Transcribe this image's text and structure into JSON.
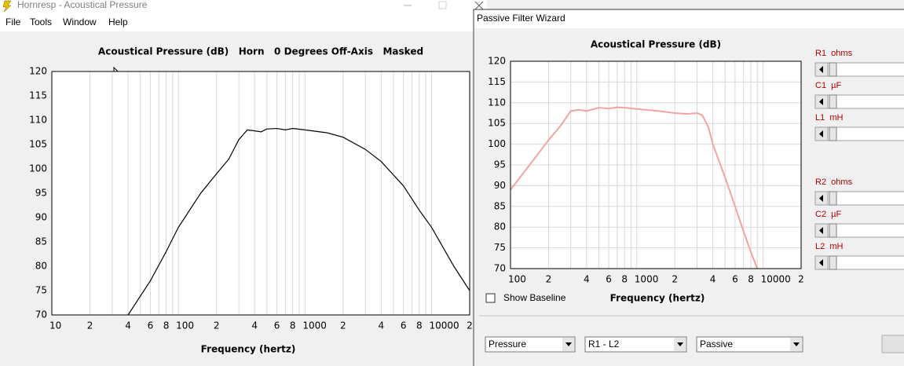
{
  "left_window": {
    "title": "Hornresp - Acoustical Pressure",
    "menu": [
      "File",
      "Tools",
      "Window",
      "Help"
    ]
  },
  "right_window": {
    "title": "Passive Filter Wizard",
    "controls": [
      "R1  ohms",
      "C1  µF",
      "L1  mH",
      "R2  ohms",
      "C2  µF",
      "L2  mH"
    ],
    "show_baseline": "Show Baseline",
    "dropdowns": [
      "Pressure",
      "R1 - L2",
      "Passive"
    ]
  },
  "chart_data": [
    {
      "type": "line",
      "title": "Acoustical Pressure (dB)   Horn   0 Degrees Off-Axis   Masked",
      "x_label": "Frequency (hertz)",
      "log_x": true,
      "grid": "x",
      "color": "#000000",
      "x": [
        40,
        60,
        80,
        100,
        150,
        200,
        250,
        300,
        350,
        400,
        450,
        500,
        600,
        700,
        800,
        1000,
        1500,
        2000,
        3000,
        4000,
        6000,
        8000,
        10000,
        15000,
        20000
      ],
      "values": [
        70,
        77,
        83,
        88,
        95,
        99,
        102,
        106,
        108,
        107.8,
        107.6,
        108.2,
        108.3,
        108,
        108.3,
        108,
        107.4,
        106.5,
        104,
        101.5,
        96.5,
        91.5,
        88,
        80,
        75
      ],
      "xlim": [
        10,
        20000
      ],
      "ylim": [
        70,
        120
      ],
      "xticks": [
        10,
        {
          "value": 20,
          "label": "2"
        },
        {
          "value": 40,
          "label": "4"
        },
        {
          "value": 60,
          "label": "6"
        },
        {
          "value": 80,
          "label": "8"
        },
        100,
        {
          "value": 200,
          "label": "2"
        },
        {
          "value": 400,
          "label": "4"
        },
        {
          "value": 600,
          "label": "6"
        },
        {
          "value": 800,
          "label": "8"
        },
        1000,
        {
          "value": 2000,
          "label": "2"
        },
        {
          "value": 4000,
          "label": "4"
        },
        {
          "value": 6000,
          "label": "6"
        },
        {
          "value": 8000,
          "label": "8"
        },
        10000,
        {
          "value": 20000,
          "label": "2"
        }
      ],
      "x_minor_grid": [
        30,
        50,
        70,
        90,
        300,
        500,
        700,
        900,
        3000,
        5000,
        7000,
        9000
      ],
      "yticks": [
        70,
        75,
        80,
        85,
        90,
        95,
        100,
        105,
        110,
        115,
        120
      ]
    },
    {
      "type": "line",
      "title": "Acoustical Pressure (dB)",
      "x_label": "Frequency (hertz)",
      "log_x": true,
      "grid": "both",
      "color": "#f2a3a3",
      "x": [
        100,
        150,
        200,
        250,
        300,
        350,
        400,
        500,
        600,
        700,
        800,
        1000,
        1500,
        2000,
        2500,
        3000,
        3300,
        3700,
        4000,
        5000,
        6000,
        7000,
        8000,
        9000
      ],
      "values": [
        89,
        96,
        101,
        104.5,
        108,
        108.3,
        108,
        108.8,
        108.6,
        108.9,
        108.8,
        108.5,
        108,
        107.5,
        107.3,
        107.5,
        107,
        104,
        100,
        92,
        85,
        79,
        74,
        70
      ],
      "xlim": [
        100,
        20000
      ],
      "ylim": [
        70,
        120
      ],
      "xticks": [
        100,
        {
          "value": 200,
          "label": "2"
        },
        {
          "value": 400,
          "label": "4"
        },
        {
          "value": 600,
          "label": "6"
        },
        {
          "value": 800,
          "label": "8"
        },
        1000,
        {
          "value": 2000,
          "label": "2"
        },
        {
          "value": 4000,
          "label": "4"
        },
        {
          "value": 6000,
          "label": "6"
        },
        {
          "value": 8000,
          "label": "8"
        },
        10000,
        {
          "value": 20000,
          "label": "2"
        }
      ],
      "x_minor_grid": [
        300,
        500,
        700,
        900,
        3000,
        5000,
        7000,
        9000
      ],
      "yticks": [
        70,
        75,
        80,
        85,
        90,
        95,
        100,
        105,
        110,
        115,
        120
      ]
    }
  ]
}
